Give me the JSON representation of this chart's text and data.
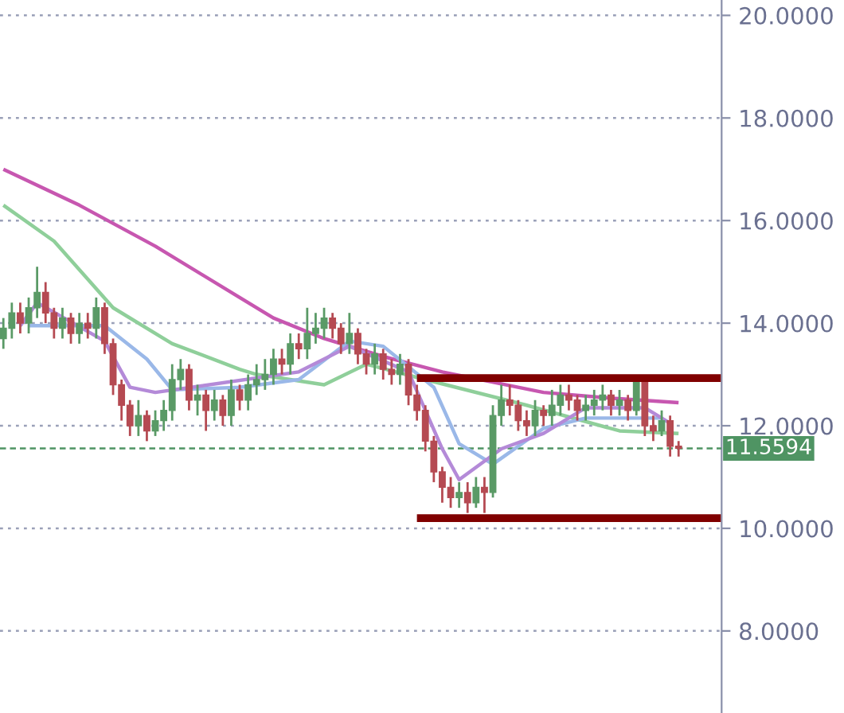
{
  "chart_data": {
    "type": "candlestick",
    "categories": [
      null,
      null,
      null,
      null,
      null,
      null,
      null,
      null,
      null,
      null,
      null,
      null,
      null,
      null,
      null,
      null,
      null,
      null,
      null,
      null,
      null,
      null,
      null,
      null,
      null,
      null,
      null,
      null,
      null,
      null,
      null,
      null,
      null,
      null,
      null,
      null,
      null,
      null,
      null,
      null,
      null,
      null,
      null,
      null,
      null,
      null,
      null,
      null,
      null,
      null,
      null,
      null,
      null,
      null,
      null,
      null,
      null,
      null,
      null,
      null,
      null,
      null,
      null,
      null,
      null,
      null,
      null,
      null,
      null,
      null,
      null,
      null,
      null,
      null,
      null,
      null,
      null,
      null,
      null,
      null,
      null,
      null,
      null,
      null,
      null,
      null
    ],
    "ohlc": [
      [
        13.7,
        14.1,
        13.5,
        13.9
      ],
      [
        13.9,
        14.4,
        13.7,
        14.2
      ],
      [
        14.2,
        14.4,
        13.8,
        14.0
      ],
      [
        14.0,
        14.5,
        13.8,
        14.3
      ],
      [
        14.3,
        15.1,
        14.1,
        14.6
      ],
      [
        14.6,
        14.8,
        14.0,
        14.2
      ],
      [
        14.2,
        14.3,
        13.7,
        13.9
      ],
      [
        13.9,
        14.3,
        13.7,
        14.1
      ],
      [
        14.1,
        14.2,
        13.6,
        13.8
      ],
      [
        13.8,
        14.2,
        13.6,
        14.0
      ],
      [
        14.0,
        14.2,
        13.7,
        13.9
      ],
      [
        13.9,
        14.5,
        13.7,
        14.3
      ],
      [
        14.3,
        14.4,
        13.4,
        13.6
      ],
      [
        13.6,
        13.7,
        12.6,
        12.8
      ],
      [
        12.8,
        12.9,
        12.1,
        12.4
      ],
      [
        12.4,
        12.5,
        11.8,
        12.0
      ],
      [
        12.0,
        12.5,
        11.8,
        12.2
      ],
      [
        12.2,
        12.3,
        11.7,
        11.9
      ],
      [
        11.9,
        12.3,
        11.8,
        12.1
      ],
      [
        12.1,
        12.5,
        11.9,
        12.3
      ],
      [
        12.3,
        13.2,
        12.1,
        12.9
      ],
      [
        12.9,
        13.3,
        12.7,
        13.1
      ],
      [
        13.1,
        13.2,
        12.3,
        12.5
      ],
      [
        12.5,
        12.8,
        12.2,
        12.6
      ],
      [
        12.6,
        12.7,
        11.9,
        12.3
      ],
      [
        12.3,
        12.7,
        12.1,
        12.5
      ],
      [
        12.5,
        12.6,
        12.0,
        12.2
      ],
      [
        12.2,
        12.9,
        12.0,
        12.7
      ],
      [
        12.7,
        12.8,
        12.3,
        12.5
      ],
      [
        12.5,
        13.0,
        12.3,
        12.8
      ],
      [
        12.8,
        13.2,
        12.6,
        12.9
      ],
      [
        12.9,
        13.3,
        12.7,
        13.0
      ],
      [
        13.0,
        13.5,
        12.8,
        13.3
      ],
      [
        13.3,
        13.5,
        13.0,
        13.2
      ],
      [
        13.2,
        13.8,
        13.0,
        13.6
      ],
      [
        13.6,
        13.8,
        13.3,
        13.5
      ],
      [
        13.5,
        14.3,
        13.3,
        13.8
      ],
      [
        13.8,
        14.2,
        13.6,
        13.9
      ],
      [
        13.9,
        14.3,
        13.7,
        14.1
      ],
      [
        14.1,
        14.2,
        13.7,
        13.9
      ],
      [
        13.9,
        14.0,
        13.4,
        13.6
      ],
      [
        13.6,
        14.2,
        13.4,
        13.8
      ],
      [
        13.8,
        13.9,
        13.2,
        13.4
      ],
      [
        13.4,
        13.5,
        13.0,
        13.2
      ],
      [
        13.2,
        13.6,
        13.0,
        13.4
      ],
      [
        13.4,
        13.5,
        12.9,
        13.1
      ],
      [
        13.1,
        13.3,
        12.8,
        13.0
      ],
      [
        13.0,
        13.4,
        12.8,
        13.2
      ],
      [
        13.2,
        13.3,
        12.4,
        12.6
      ],
      [
        12.6,
        12.8,
        12.1,
        12.3
      ],
      [
        12.3,
        12.4,
        11.5,
        11.7
      ],
      [
        11.7,
        11.8,
        10.9,
        11.1
      ],
      [
        11.1,
        11.2,
        10.5,
        10.8
      ],
      [
        10.8,
        11.0,
        10.4,
        10.6
      ],
      [
        10.6,
        10.9,
        10.4,
        10.7
      ],
      [
        10.7,
        10.9,
        10.3,
        10.5
      ],
      [
        10.5,
        11.0,
        10.4,
        10.8
      ],
      [
        10.8,
        11.0,
        10.3,
        10.7
      ],
      [
        10.7,
        12.4,
        10.6,
        12.2
      ],
      [
        12.2,
        12.8,
        12.0,
        12.5
      ],
      [
        12.5,
        12.8,
        12.2,
        12.4
      ],
      [
        12.4,
        12.5,
        11.9,
        12.1
      ],
      [
        12.1,
        12.3,
        11.8,
        12.0
      ],
      [
        12.0,
        12.5,
        11.8,
        12.3
      ],
      [
        12.3,
        12.4,
        12.0,
        12.2
      ],
      [
        12.2,
        12.7,
        12.0,
        12.4
      ],
      [
        12.4,
        12.8,
        12.2,
        12.6
      ],
      [
        12.6,
        12.8,
        12.3,
        12.5
      ],
      [
        12.5,
        12.6,
        12.1,
        12.3
      ],
      [
        12.3,
        12.6,
        12.1,
        12.4
      ],
      [
        12.4,
        12.7,
        12.2,
        12.5
      ],
      [
        12.5,
        12.8,
        12.3,
        12.6
      ],
      [
        12.6,
        12.7,
        12.2,
        12.4
      ],
      [
        12.4,
        12.7,
        12.2,
        12.5
      ],
      [
        12.5,
        12.6,
        12.1,
        12.3
      ],
      [
        12.3,
        12.9,
        12.2,
        12.9
      ],
      [
        12.9,
        12.9,
        11.8,
        12.0
      ],
      [
        12.0,
        12.2,
        11.7,
        11.9
      ],
      [
        11.9,
        12.3,
        11.8,
        12.1
      ],
      [
        12.1,
        12.2,
        11.4,
        11.6
      ],
      [
        11.6,
        11.7,
        11.4,
        11.56
      ],
      null,
      null,
      null,
      null,
      null
    ],
    "colors": [
      "#5a9a66",
      "#5a9a66",
      "#b54a52",
      "#5a9a66",
      "#5a9a66",
      "#b54a52",
      "#b54a52",
      "#5a9a66",
      "#b54a52",
      "#5a9a66",
      "#b54a52",
      "#5a9a66",
      "#b54a52",
      "#b54a52",
      "#b54a52",
      "#b54a52",
      "#5a9a66",
      "#b54a52",
      "#5a9a66",
      "#5a9a66",
      "#5a9a66",
      "#5a9a66",
      "#b54a52",
      "#5a9a66",
      "#b54a52",
      "#5a9a66",
      "#b54a52",
      "#5a9a66",
      "#b54a52",
      "#5a9a66",
      "#5a9a66",
      "#5a9a66",
      "#5a9a66",
      "#b54a52",
      "#5a9a66",
      "#b54a52",
      "#5a9a66",
      "#5a9a66",
      "#5a9a66",
      "#b54a52",
      "#b54a52",
      "#5a9a66",
      "#b54a52",
      "#b54a52",
      "#5a9a66",
      "#b54a52",
      "#b54a52",
      "#5a9a66",
      "#b54a52",
      "#b54a52",
      "#b54a52",
      "#b54a52",
      "#b54a52",
      "#b54a52",
      "#5a9a66",
      "#b54a52",
      "#5a9a66",
      "#b54a52",
      "#5a9a66",
      "#5a9a66",
      "#b54a52",
      "#b54a52",
      "#b54a52",
      "#5a9a66",
      "#b54a52",
      "#5a9a66",
      "#5a9a66",
      "#b54a52",
      "#b54a52",
      "#5a9a66",
      "#5a9a66",
      "#5a9a66",
      "#b54a52",
      "#5a9a66",
      "#b54a52",
      "#5a9a66",
      "#b54a52",
      "#b54a52",
      "#5a9a66",
      "#b54a52",
      "#b54a52",
      null,
      null,
      null,
      null,
      null
    ],
    "series": [
      {
        "type": "line",
        "color": "#c757b0",
        "values": [
          17.0,
          null,
          null,
          null,
          null,
          null,
          null,
          null,
          null,
          16.3,
          null,
          null,
          null,
          null,
          null,
          null,
          null,
          null,
          15.5,
          null,
          null,
          null,
          null,
          null,
          null,
          null,
          null,
          null,
          14.5,
          null,
          null,
          null,
          14.1,
          null,
          null,
          null,
          null,
          null,
          13.7,
          null,
          null,
          null,
          null,
          null,
          null,
          13.35,
          null,
          null,
          null,
          null,
          null,
          null,
          13.05,
          null,
          null,
          null,
          null,
          null,
          null,
          null,
          null,
          null,
          null,
          null,
          12.65,
          null,
          null,
          null,
          null,
          null,
          null,
          12.55,
          null,
          null,
          null,
          null,
          null,
          null,
          null,
          null,
          12.45,
          null,
          null,
          null,
          null,
          null
        ]
      },
      {
        "type": "line",
        "color": "#8fcf9a",
        "values": [
          16.3,
          null,
          null,
          null,
          null,
          null,
          15.6,
          null,
          null,
          null,
          null,
          null,
          null,
          14.3,
          null,
          null,
          null,
          null,
          null,
          null,
          13.6,
          null,
          null,
          null,
          null,
          null,
          null,
          null,
          13.1,
          null,
          13.0,
          null,
          null,
          null,
          null,
          null,
          null,
          null,
          12.8,
          null,
          null,
          null,
          null,
          13.2,
          null,
          null,
          null,
          null,
          null,
          null,
          12.9,
          null,
          null,
          null,
          null,
          null,
          null,
          null,
          null,
          null,
          null,
          null,
          12.4,
          null,
          null,
          null,
          null,
          null,
          null,
          null,
          null,
          null,
          null,
          11.9,
          null,
          null,
          null,
          null,
          null,
          null,
          11.85,
          null,
          null,
          null,
          null,
          null
        ]
      },
      {
        "type": "line",
        "color": "#9ab8e8",
        "values": [
          null,
          null,
          null,
          13.95,
          null,
          null,
          null,
          null,
          null,
          null,
          null,
          null,
          13.95,
          null,
          null,
          null,
          null,
          13.3,
          null,
          null,
          12.7,
          null,
          null,
          null,
          null,
          null,
          null,
          null,
          12.75,
          null,
          null,
          null,
          null,
          null,
          null,
          12.9,
          null,
          null,
          null,
          null,
          null,
          13.65,
          null,
          null,
          null,
          13.55,
          null,
          null,
          null,
          null,
          null,
          12.75,
          null,
          null,
          11.65,
          null,
          null,
          null,
          11.25,
          null,
          null,
          null,
          null,
          null,
          11.95,
          null,
          null,
          null,
          null,
          12.15,
          null,
          null,
          null,
          null,
          null,
          null,
          null,
          null,
          12.15,
          null,
          null,
          null,
          null,
          null,
          null,
          null
        ]
      },
      {
        "type": "line",
        "color": "#b48ad8",
        "values": [
          null,
          null,
          13.95,
          null,
          14.4,
          null,
          null,
          null,
          null,
          null,
          null,
          null,
          13.65,
          null,
          null,
          12.75,
          null,
          null,
          12.65,
          null,
          null,
          null,
          null,
          null,
          null,
          null,
          null,
          null,
          null,
          null,
          null,
          null,
          null,
          null,
          null,
          13.05,
          null,
          null,
          null,
          null,
          null,
          13.55,
          null,
          null,
          null,
          null,
          null,
          null,
          13.05,
          null,
          null,
          null,
          11.55,
          null,
          10.95,
          null,
          null,
          null,
          null,
          11.55,
          null,
          null,
          null,
          null,
          11.85,
          null,
          null,
          null,
          null,
          12.35,
          null,
          null,
          null,
          null,
          null,
          null,
          12.35,
          null,
          null,
          12.05,
          null,
          null,
          null,
          null,
          null,
          null
        ]
      },
      {
        "type": "line",
        "color": "#800000",
        "values": [
          null,
          null,
          null,
          null,
          null,
          null,
          null,
          null,
          null,
          null,
          null,
          null,
          null,
          null,
          null,
          null,
          null,
          null,
          null,
          null,
          null,
          null,
          null,
          null,
          null,
          null,
          null,
          null,
          null,
          null,
          null,
          null,
          null,
          null,
          null,
          null,
          null,
          null,
          null,
          null,
          null,
          null,
          null,
          null,
          null,
          null,
          null,
          null,
          null,
          12.93,
          12.93,
          12.93,
          12.93,
          12.93,
          12.93,
          12.93,
          12.93,
          12.93,
          12.93,
          12.93,
          12.93,
          12.93,
          12.93,
          12.93,
          12.93,
          12.93,
          12.93,
          12.93,
          12.93,
          12.93,
          12.93,
          12.93,
          12.93,
          12.93,
          12.93,
          12.93,
          12.93,
          12.93,
          12.93,
          12.93,
          12.93,
          12.93,
          12.93,
          12.93,
          12.93,
          12.93
        ]
      },
      {
        "type": "line",
        "color": "#800000",
        "values": [
          null,
          null,
          null,
          null,
          null,
          null,
          null,
          null,
          null,
          null,
          null,
          null,
          null,
          null,
          null,
          null,
          null,
          null,
          null,
          null,
          null,
          null,
          null,
          null,
          null,
          null,
          null,
          null,
          null,
          null,
          null,
          null,
          null,
          null,
          null,
          null,
          null,
          null,
          null,
          null,
          null,
          null,
          null,
          null,
          null,
          null,
          null,
          null,
          null,
          10.2,
          10.2,
          10.2,
          10.2,
          10.2,
          10.2,
          10.2,
          10.2,
          10.2,
          10.2,
          10.2,
          10.2,
          10.2,
          10.2,
          10.2,
          10.2,
          10.2,
          10.2,
          10.2,
          10.2,
          10.2,
          10.2,
          10.2,
          10.2,
          10.2,
          10.2,
          10.2,
          10.2,
          10.2,
          10.2,
          10.2,
          10.2,
          10.2,
          10.2,
          10.2,
          10.2,
          10.2
        ]
      }
    ],
    "ylim": [
      6.4,
      20.3
    ],
    "yticks": [
      {
        "value": 8,
        "label": "8.0000"
      },
      {
        "value": 10,
        "label": "10.0000"
      },
      {
        "value": 12,
        "label": "12.0000"
      },
      {
        "value": 14,
        "label": "14.0000"
      },
      {
        "value": 16,
        "label": "16.0000"
      },
      {
        "value": 18,
        "label": "18.0000"
      },
      {
        "value": 20,
        "label": "20.0000"
      }
    ],
    "ref_lines": [
      {
        "axis": "y",
        "value": 11.5594,
        "label": "11.5594",
        "color": "#4f9463",
        "line_style": "dashed"
      }
    ],
    "grid": "y",
    "tick_labels": "y"
  }
}
